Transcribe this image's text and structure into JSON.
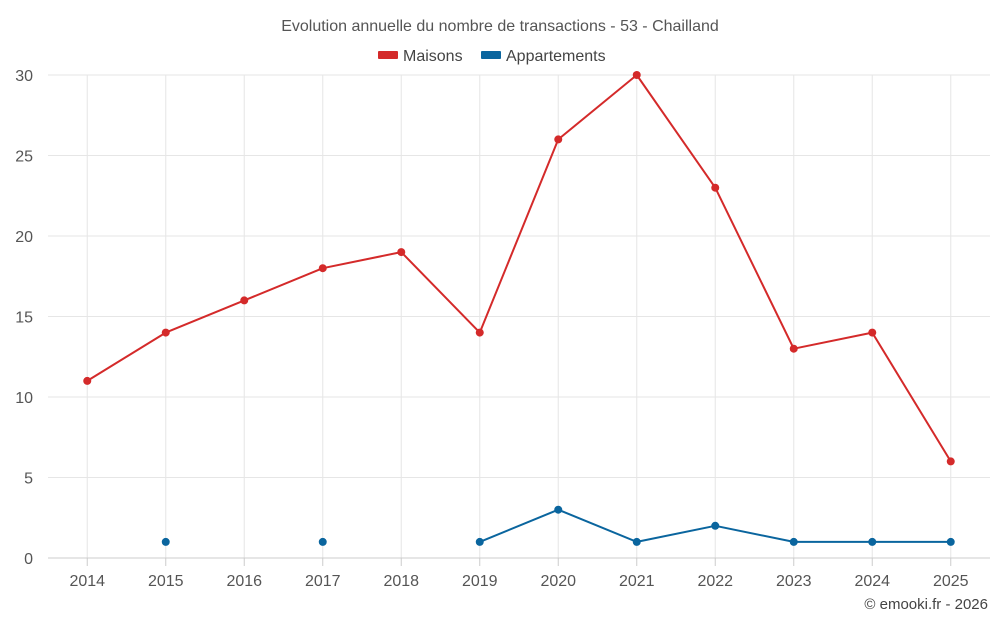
{
  "chart_data": {
    "type": "line",
    "title": "Evolution annuelle du nombre de transactions - 53 - Chailland",
    "categories": [
      "2014",
      "2015",
      "2016",
      "2017",
      "2018",
      "2019",
      "2020",
      "2021",
      "2022",
      "2023",
      "2024",
      "2025"
    ],
    "series": [
      {
        "name": "Maisons",
        "color": "#d42a2a",
        "values": [
          11,
          14,
          16,
          18,
          19,
          14,
          26,
          30,
          23,
          13,
          14,
          6
        ]
      },
      {
        "name": "Appartements",
        "color": "#0a659e",
        "values": [
          null,
          1,
          null,
          1,
          null,
          1,
          3,
          1,
          2,
          1,
          1,
          1
        ]
      }
    ],
    "ylim": [
      0,
      30
    ],
    "yticks": [
      0,
      5,
      10,
      15,
      20,
      25,
      30
    ],
    "xlabel": "",
    "ylabel": "",
    "grid": true,
    "legend": "top-center"
  },
  "credit": "© emooki.fr - 2026"
}
